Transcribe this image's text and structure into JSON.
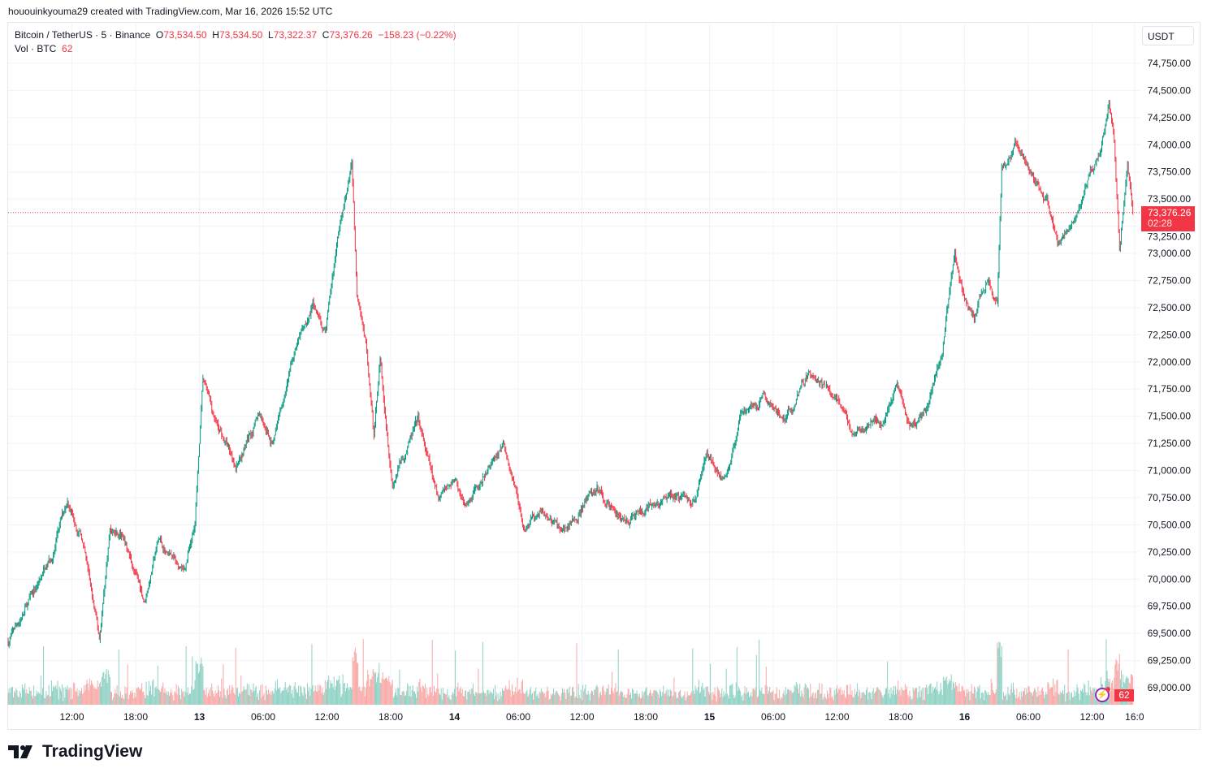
{
  "credit": "hououinkyouma29 created with TradingView.com, Mar 16, 2026 15:52 UTC",
  "legend": {
    "symbol": "Bitcoin / TetherUS · 5 · Binance",
    "open_label": "O",
    "open": "73,534.50",
    "high_label": "H",
    "high": "73,534.50",
    "low_label": "L",
    "low": "73,322.37",
    "close_label": "C",
    "close": "73,376.26",
    "change": "−158.23 (−0.22%)",
    "vol_label": "Vol · BTC",
    "vol": "62"
  },
  "currency_button": "USDT",
  "price_label": {
    "price": "73,376.26",
    "countdown": "02:28"
  },
  "volume_badge": "62",
  "logo_text": "TradingView",
  "colors": {
    "up": "#089981",
    "down": "#f23645",
    "up_vol": "#8fd1c4",
    "down_vol": "#f7a9a7",
    "grid": "#f0f3fa",
    "last_price": "#f23645"
  },
  "chart_data": {
    "type": "candlestick",
    "interval_minutes": 5,
    "ylim": [
      69000,
      74750
    ],
    "y_ticks": [
      "74,750.00",
      "74,500.00",
      "74,250.00",
      "74,000.00",
      "73,750.00",
      "73,500.00",
      "73,250.00",
      "73,000.00",
      "72,750.00",
      "72,500.00",
      "72,250.00",
      "72,000.00",
      "71,750.00",
      "71,500.00",
      "71,250.00",
      "71,000.00",
      "70,750.00",
      "70,500.00",
      "70,250.00",
      "70,000.00",
      "69,750.00",
      "69,500.00",
      "69,250.00",
      "69,000.00"
    ],
    "x_range": [
      "2026-03-12 06:00",
      "2026-03-16 16:05"
    ],
    "x_ticks": [
      {
        "t": "2026-03-12 12:00",
        "label": "12:00"
      },
      {
        "t": "2026-03-12 18:00",
        "label": "18:00"
      },
      {
        "t": "2026-03-13 00:00",
        "label": "13",
        "bold": true
      },
      {
        "t": "2026-03-13 06:00",
        "label": "06:00"
      },
      {
        "t": "2026-03-13 12:00",
        "label": "12:00"
      },
      {
        "t": "2026-03-13 18:00",
        "label": "18:00"
      },
      {
        "t": "2026-03-14 00:00",
        "label": "14",
        "bold": true
      },
      {
        "t": "2026-03-14 06:00",
        "label": "06:00"
      },
      {
        "t": "2026-03-14 12:00",
        "label": "12:00"
      },
      {
        "t": "2026-03-14 18:00",
        "label": "18:00"
      },
      {
        "t": "2026-03-15 00:00",
        "label": "15",
        "bold": true
      },
      {
        "t": "2026-03-15 06:00",
        "label": "06:00"
      },
      {
        "t": "2026-03-15 12:00",
        "label": "12:00"
      },
      {
        "t": "2026-03-15 18:00",
        "label": "18:00"
      },
      {
        "t": "2026-03-16 00:00",
        "label": "16",
        "bold": true
      },
      {
        "t": "2026-03-16 06:00",
        "label": "06:00"
      },
      {
        "t": "2026-03-16 12:00",
        "label": "12:00"
      },
      {
        "t": "2026-03-16 16:00",
        "label": "16:0"
      }
    ],
    "last_price": 73376.26,
    "price_path": [
      [
        "2026-03-12 06:00",
        69425
      ],
      [
        "2026-03-12 08:15",
        69840
      ],
      [
        "2026-03-12 10:00",
        70170
      ],
      [
        "2026-03-12 11:35",
        70730
      ],
      [
        "2026-03-12 12:55",
        70400
      ],
      [
        "2026-03-12 14:35",
        69425
      ],
      [
        "2026-03-12 15:35",
        70470
      ],
      [
        "2026-03-12 16:40",
        70400
      ],
      [
        "2026-03-12 18:50",
        69800
      ],
      [
        "2026-03-12 20:10",
        70360
      ],
      [
        "2026-03-12 22:40",
        70020
      ],
      [
        "2026-03-12 23:35",
        70540
      ],
      [
        "2026-03-13 00:20",
        71820
      ],
      [
        "2026-03-13 01:30",
        71440
      ],
      [
        "2026-03-13 03:25",
        71070
      ],
      [
        "2026-03-13 05:40",
        71520
      ],
      [
        "2026-03-13 06:50",
        71260
      ],
      [
        "2026-03-13 08:45",
        72040
      ],
      [
        "2026-03-13 10:40",
        72530
      ],
      [
        "2026-03-13 11:50",
        72270
      ],
      [
        "2026-03-13 12:55",
        73090
      ],
      [
        "2026-03-13 14:20",
        73870
      ],
      [
        "2026-03-13 14:50",
        72640
      ],
      [
        "2026-03-13 15:40",
        72190
      ],
      [
        "2026-03-13 16:25",
        71300
      ],
      [
        "2026-03-13 17:00",
        72040
      ],
      [
        "2026-03-13 18:10",
        70920
      ],
      [
        "2026-03-13 20:35",
        71440
      ],
      [
        "2026-03-13 22:30",
        70700
      ],
      [
        "2026-03-14 00:00",
        70920
      ],
      [
        "2026-03-14 01:10",
        70620
      ],
      [
        "2026-03-14 04:35",
        71260
      ],
      [
        "2026-03-14 06:30",
        70470
      ],
      [
        "2026-03-14 08:25",
        70620
      ],
      [
        "2026-03-14 10:20",
        70430
      ],
      [
        "2026-03-14 13:25",
        70850
      ],
      [
        "2026-03-14 15:40",
        70540
      ],
      [
        "2026-03-14 18:20",
        70620
      ],
      [
        "2026-03-14 20:40",
        70770
      ],
      [
        "2026-03-14 22:35",
        70730
      ],
      [
        "2026-03-14 23:45",
        71180
      ],
      [
        "2026-03-15 01:25",
        70920
      ],
      [
        "2026-03-15 02:55",
        71480
      ],
      [
        "2026-03-15 05:05",
        71670
      ],
      [
        "2026-03-15 07:00",
        71440
      ],
      [
        "2026-03-15 09:15",
        71880
      ],
      [
        "2026-03-15 11:55",
        71670
      ],
      [
        "2026-03-15 13:20",
        71370
      ],
      [
        "2026-03-15 16:10",
        71440
      ],
      [
        "2026-03-15 17:40",
        71820
      ],
      [
        "2026-03-15 18:50",
        71410
      ],
      [
        "2026-03-15 20:20",
        71560
      ],
      [
        "2026-03-15 21:55",
        72120
      ],
      [
        "2026-03-15 23:05",
        73050
      ],
      [
        "2026-03-15 23:50",
        72640
      ],
      [
        "2026-03-16 00:55",
        72380
      ],
      [
        "2026-03-16 02:05",
        72750
      ],
      [
        "2026-03-16 03:05",
        72530
      ],
      [
        "2026-03-16 03:30",
        73760
      ],
      [
        "2026-03-16 04:45",
        73990
      ],
      [
        "2026-03-16 06:20",
        73760
      ],
      [
        "2026-03-16 07:50",
        73460
      ],
      [
        "2026-03-16 08:45",
        73090
      ],
      [
        "2026-03-16 10:30",
        73420
      ],
      [
        "2026-03-16 11:40",
        73690
      ],
      [
        "2026-03-16 12:50",
        73910
      ],
      [
        "2026-03-16 13:35",
        74400
      ],
      [
        "2026-03-16 14:05",
        73990
      ],
      [
        "2026-03-16 14:35",
        73050
      ],
      [
        "2026-03-16 15:20",
        73840
      ],
      [
        "2026-03-16 15:50",
        73376.26
      ]
    ]
  }
}
